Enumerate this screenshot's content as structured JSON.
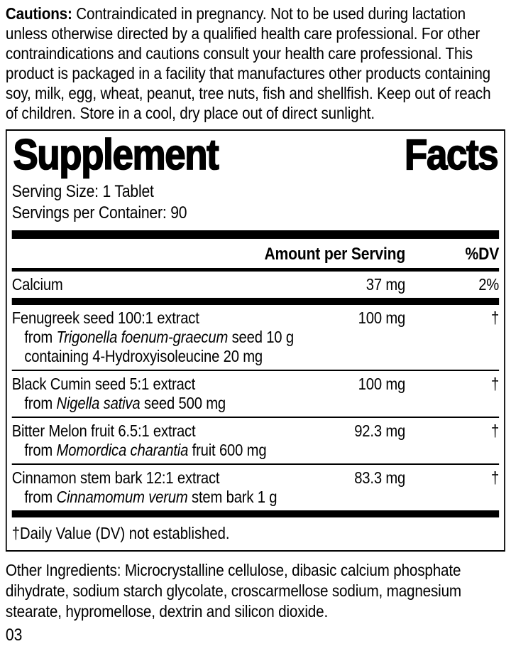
{
  "cautions": {
    "label": "Cautions:",
    "text": " Contraindicated in pregnancy. Not to be used during lactation unless otherwise directed by a qualified health care professional. For other contraindications and cautions consult your health care professional. This product is packaged in a facility that manufactures other products containing soy, milk, egg, wheat, peanut, tree nuts, fish and shellfish. Keep out of reach of children. Store in a cool, dry place out of direct sunlight."
  },
  "panel": {
    "title_word1": "Supplement",
    "title_word2": "Facts",
    "serving_size": "Serving Size: 1 Tablet",
    "servings_per_container": "Servings per Container: 90",
    "header": {
      "amount": "Amount per Serving",
      "dv": "%DV"
    },
    "rows": [
      {
        "name": "Calcium",
        "amount": "37 mg",
        "dv": "2%"
      },
      {
        "name": "Fenugreek seed 100:1 extract",
        "amount": "100 mg",
        "dv": "†",
        "sub1_pre": "from ",
        "sub1_italic": "Trigonella foenum-graecum",
        "sub1_post": " seed 10 g",
        "sub2": "containing 4-Hydroxyisoleucine 20 mg"
      },
      {
        "name": "Black Cumin seed 5:1 extract",
        "amount": "100 mg",
        "dv": "†",
        "sub1_pre": "from ",
        "sub1_italic": "Nigella sativa",
        "sub1_post": " seed 500 mg"
      },
      {
        "name": "Bitter Melon fruit 6.5:1 extract",
        "amount": "92.3 mg",
        "dv": "†",
        "sub1_pre": "from ",
        "sub1_italic": "Momordica charantia",
        "sub1_post": " fruit 600 mg"
      },
      {
        "name": "Cinnamon stem bark 12:1 extract",
        "amount": "83.3 mg",
        "dv": "†",
        "sub1_pre": "from ",
        "sub1_italic": "Cinnamomum verum",
        "sub1_post": " stem bark 1 g"
      }
    ],
    "footnote": "†Daily Value (DV) not established."
  },
  "other_ingredients": "Other Ingredients: Microcrystalline cellulose, dibasic calcium phosphate dihydrate, sodium starch glycolate, croscarmellose sodium, magnesium stearate, hypromellose, dextrin and silicon dioxide.",
  "page_number": "03",
  "colors": {
    "text": "#000000",
    "background": "#ffffff"
  }
}
